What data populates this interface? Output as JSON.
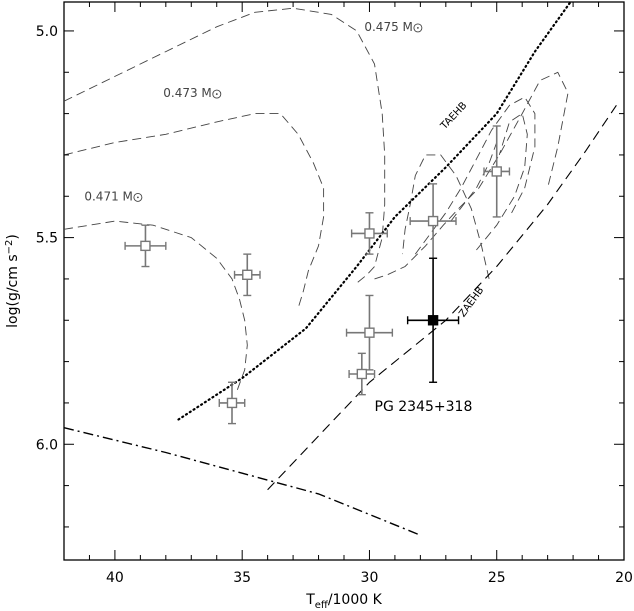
{
  "chart_data": {
    "type": "scatter",
    "title": "",
    "xlabel_main": "T",
    "xlabel_sub": "eff",
    "xlabel_rest": "/1000 K",
    "ylabel_main": "log(g/cm s",
    "ylabel_sup": "−2",
    "ylabel_close": ")",
    "xlim": [
      42,
      20
    ],
    "ylim": [
      4.93,
      6.28
    ],
    "x_ticks": [
      40,
      35,
      30,
      25,
      20
    ],
    "y_ticks": [
      5.0,
      5.5,
      6.0
    ],
    "x_tick_labels": [
      "40",
      "35",
      "30",
      "25",
      "20"
    ],
    "y_tick_labels": [
      "5.0",
      "5.5",
      "6.0"
    ],
    "grid": false,
    "tracks": [
      {
        "mass_label": "0.475 M",
        "style": "dashed",
        "label_x": 30.2,
        "label_y": 5.0,
        "points": [
          [
            42,
            5.17
          ],
          [
            40,
            5.11
          ],
          [
            38,
            5.05
          ],
          [
            36,
            4.99
          ],
          [
            34.5,
            4.955
          ],
          [
            33,
            4.945
          ],
          [
            31.5,
            4.96
          ],
          [
            30.5,
            5.0
          ],
          [
            29.8,
            5.08
          ],
          [
            29.5,
            5.2
          ],
          [
            29.4,
            5.3
          ],
          [
            29.4,
            5.42
          ],
          [
            29.5,
            5.5
          ],
          [
            29.8,
            5.57
          ],
          [
            30.1,
            5.59
          ],
          [
            30.5,
            5.61
          ]
        ]
      },
      {
        "mass_label": "0.473 M",
        "style": "dashed",
        "label_x": 38.1,
        "label_y": 5.16,
        "points": [
          [
            42,
            5.3
          ],
          [
            40,
            5.27
          ],
          [
            38,
            5.25
          ],
          [
            36,
            5.22
          ],
          [
            34.5,
            5.2
          ],
          [
            33.5,
            5.2
          ],
          [
            32.8,
            5.25
          ],
          [
            32.2,
            5.32
          ],
          [
            31.8,
            5.38
          ],
          [
            31.8,
            5.45
          ],
          [
            32.0,
            5.52
          ],
          [
            32.4,
            5.58
          ],
          [
            32.6,
            5.63
          ],
          [
            32.8,
            5.67
          ]
        ]
      },
      {
        "mass_label": "0.471 M",
        "style": "dashed",
        "label_x": 41.2,
        "label_y": 5.41,
        "points": [
          [
            42,
            5.48
          ],
          [
            40,
            5.46
          ],
          [
            38.5,
            5.47
          ],
          [
            37,
            5.5
          ],
          [
            36,
            5.55
          ],
          [
            35.4,
            5.6
          ],
          [
            35.1,
            5.65
          ],
          [
            34.9,
            5.7
          ],
          [
            34.8,
            5.76
          ],
          [
            34.9,
            5.82
          ],
          [
            35.2,
            5.87
          ]
        ]
      },
      {
        "mass_label": "",
        "style": "dashed",
        "label_x": 0,
        "label_y": 0,
        "points": [
          [
            29.8,
            5.6
          ],
          [
            29.3,
            5.59
          ],
          [
            28.6,
            5.57
          ],
          [
            27.8,
            5.52
          ],
          [
            27.1,
            5.47
          ],
          [
            26.5,
            5.43
          ],
          [
            25.7,
            5.38
          ],
          [
            24.9,
            5.3
          ],
          [
            24.0,
            5.2
          ],
          [
            23.3,
            5.12
          ],
          [
            22.6,
            5.1
          ],
          [
            22.2,
            5.15
          ],
          [
            22.6,
            5.28
          ],
          [
            23.0,
            5.38
          ]
        ]
      },
      {
        "mass_label": "",
        "style": "dashed",
        "label_x": 0,
        "label_y": 0,
        "points": [
          [
            28.2,
            5.54
          ],
          [
            27.6,
            5.49
          ],
          [
            27.0,
            5.44
          ],
          [
            26.4,
            5.38
          ],
          [
            25.8,
            5.31
          ],
          [
            25.2,
            5.24
          ],
          [
            24.5,
            5.18
          ],
          [
            23.9,
            5.16
          ],
          [
            23.5,
            5.2
          ],
          [
            23.5,
            5.28
          ],
          [
            23.9,
            5.38
          ],
          [
            24.5,
            5.45
          ]
        ]
      },
      {
        "mass_label": "",
        "style": "dashed",
        "label_x": 0,
        "label_y": 0,
        "points": [
          [
            25.3,
            5.6
          ],
          [
            25.6,
            5.52
          ],
          [
            26.0,
            5.43
          ],
          [
            26.6,
            5.35
          ],
          [
            27.2,
            5.3
          ],
          [
            27.8,
            5.3
          ],
          [
            28.2,
            5.35
          ],
          [
            28.4,
            5.42
          ],
          [
            28.6,
            5.48
          ],
          [
            28.7,
            5.54
          ]
        ]
      },
      {
        "mass_label": "",
        "style": "dashed",
        "label_x": 0,
        "label_y": 0,
        "points": [
          [
            25.8,
            5.53
          ],
          [
            25.0,
            5.47
          ],
          [
            24.3,
            5.4
          ],
          [
            23.9,
            5.33
          ],
          [
            23.8,
            5.25
          ],
          [
            24.0,
            5.2
          ],
          [
            24.5,
            5.22
          ],
          [
            24.9,
            5.3
          ]
        ]
      },
      {
        "mass_label": "",
        "style": "dashed",
        "label_x": 0,
        "label_y": 0,
        "points": [
          [
            26.8,
            5.46
          ],
          [
            26.3,
            5.42
          ],
          [
            25.8,
            5.38
          ],
          [
            25.3,
            5.32
          ],
          [
            25.0,
            5.27
          ]
        ]
      }
    ],
    "taehb": {
      "label": "TAEHB",
      "label_x": 26.6,
      "label_y": 5.21,
      "points": [
        [
          37.5,
          5.94
        ],
        [
          35,
          5.84
        ],
        [
          32.5,
          5.72
        ],
        [
          30.5,
          5.57
        ],
        [
          29,
          5.45
        ],
        [
          27,
          5.33
        ],
        [
          25,
          5.2
        ],
        [
          23.5,
          5.05
        ],
        [
          22.1,
          4.93
        ]
      ]
    },
    "zaehb": {
      "label": "ZAEHB",
      "label_x": 25.9,
      "label_y": 5.66,
      "points": [
        [
          34.0,
          6.11
        ],
        [
          30,
          5.85
        ],
        [
          27,
          5.7
        ],
        [
          25,
          5.57
        ],
        [
          23,
          5.42
        ],
        [
          21.5,
          5.29
        ],
        [
          20.3,
          5.18
        ]
      ]
    },
    "dashdot": {
      "points": [
        [
          42,
          5.96
        ],
        [
          38,
          6.02
        ],
        [
          35,
          6.07
        ],
        [
          32,
          6.12
        ],
        [
          30,
          6.17
        ],
        [
          28,
          6.22
        ]
      ]
    },
    "comparison_stars": [
      {
        "x": 38.8,
        "y": 5.52,
        "xerr": 0.8,
        "yerr": 0.05
      },
      {
        "x": 34.8,
        "y": 5.59,
        "xerr": 0.5,
        "yerr": 0.05
      },
      {
        "x": 35.4,
        "y": 5.9,
        "xerr": 0.5,
        "yerr": 0.05
      },
      {
        "x": 30.0,
        "y": 5.49,
        "xerr": 0.7,
        "yerr": 0.05
      },
      {
        "x": 30.0,
        "y": 5.73,
        "xerr": 0.9,
        "yerr": 0.09
      },
      {
        "x": 30.3,
        "y": 5.83,
        "xerr": 0.5,
        "yerr": 0.05
      },
      {
        "x": 27.5,
        "y": 5.46,
        "xerr": 0.9,
        "yerr": 0.09
      },
      {
        "x": 25.0,
        "y": 5.34,
        "xerr": 0.5,
        "yerr": 0.11
      }
    ],
    "target": {
      "name": "PG 2345+318",
      "x": 27.5,
      "y": 5.7,
      "xerr": 1.0,
      "yerr": 0.15,
      "label_x": 29.8,
      "label_y": 5.92
    },
    "colors": {
      "axis": "#000000",
      "track": "#444444",
      "comparison": "#777777",
      "target": "#000000"
    }
  }
}
